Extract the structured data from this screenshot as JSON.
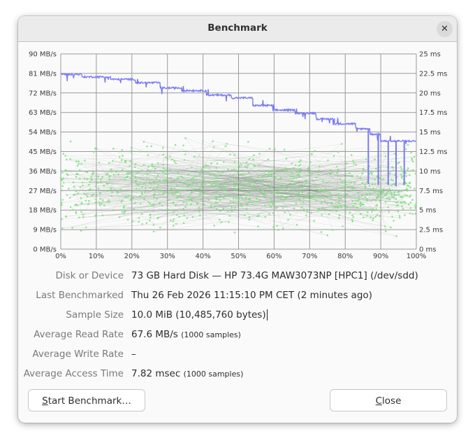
{
  "window": {
    "title": "Benchmark",
    "close_icon": "close-icon"
  },
  "chart_data": {
    "type": "line",
    "left_axis": {
      "unit": "MB/s",
      "range": [
        0,
        90
      ],
      "ticks": [
        "0 MB/s",
        "9 MB/s",
        "18 MB/s",
        "27 MB/s",
        "36 MB/s",
        "45 MB/s",
        "54 MB/s",
        "63 MB/s",
        "72 MB/s",
        "81 MB/s",
        "90 MB/s"
      ]
    },
    "right_axis": {
      "unit": "ms",
      "range": [
        0,
        25
      ],
      "ticks": [
        "0 ms",
        "2.5 ms",
        "5 ms",
        "7.5 ms",
        "10 ms",
        "12.5 ms",
        "15 ms",
        "17.5 ms",
        "20 ms",
        "22.5 ms",
        "25 ms"
      ]
    },
    "x_axis": {
      "unit": "%",
      "range": [
        0,
        100
      ],
      "ticks": [
        "0%",
        "10%",
        "20%",
        "30%",
        "40%",
        "50%",
        "60%",
        "70%",
        "80%",
        "90%",
        "100%"
      ]
    },
    "grid": true,
    "colors": {
      "read_rate": "#7b7bf5",
      "access_time": "#7ee07e",
      "seek_lines": "#556b55",
      "grid": "#9a9a9a"
    },
    "read_rate_steps": [
      {
        "from": 0,
        "to": 6,
        "value": 80.6
      },
      {
        "from": 6,
        "to": 14,
        "value": 79.4
      },
      {
        "from": 14,
        "to": 21,
        "value": 78.3
      },
      {
        "from": 21,
        "to": 28,
        "value": 76.7
      },
      {
        "from": 28,
        "to": 34,
        "value": 74.3
      },
      {
        "from": 34,
        "to": 41,
        "value": 73.1
      },
      {
        "from": 41,
        "to": 48,
        "value": 71.0
      },
      {
        "from": 48,
        "to": 54,
        "value": 69.7
      },
      {
        "from": 54,
        "to": 60,
        "value": 66.2
      },
      {
        "from": 60,
        "to": 66,
        "value": 64.1
      },
      {
        "from": 66,
        "to": 72,
        "value": 62.7
      },
      {
        "from": 72,
        "to": 77,
        "value": 60.0
      },
      {
        "from": 77,
        "to": 83,
        "value": 57.8
      },
      {
        "from": 83,
        "to": 87,
        "value": 55.5
      },
      {
        "from": 87,
        "to": 90,
        "value": 53.0
      },
      {
        "from": 90,
        "to": 100,
        "value": 49.8
      }
    ],
    "read_rate_dips": [
      {
        "x": 86.5,
        "value": 30.0
      },
      {
        "x": 89.3,
        "value": 29.5
      },
      {
        "x": 92.1,
        "value": 29.5
      },
      {
        "x": 94.3,
        "value": 29.0
      },
      {
        "x": 96.6,
        "value": 29.5
      }
    ],
    "access_time_samples": 1000,
    "access_time_avg_ms": 7.82
  },
  "info": {
    "rows": [
      {
        "label": "Disk or Device",
        "value": "73 GB Hard Disk — HP 73.4G MAW3073NP [HPC1] (/dev/sdd)",
        "extra": ""
      },
      {
        "label": "Last Benchmarked",
        "value": "Thu 26 Feb 2026 11:15:10 PM CET (2 minutes ago)",
        "extra": ""
      },
      {
        "label": "Sample Size",
        "value": "10.0 MiB (10,485,760 bytes)",
        "extra": ""
      },
      {
        "label": "Average Read Rate",
        "value": "67.6 MB/s",
        "extra": "(1000 samples)"
      },
      {
        "label": "Average Write Rate",
        "value": "–",
        "extra": ""
      },
      {
        "label": "Average Access Time",
        "value": "7.82 msec",
        "extra": "(1000 samples)"
      }
    ]
  },
  "buttons": {
    "start_mnemonic": "S",
    "start_rest": "tart Benchmark…",
    "close_mnemonic": "C",
    "close_rest": "lose"
  }
}
